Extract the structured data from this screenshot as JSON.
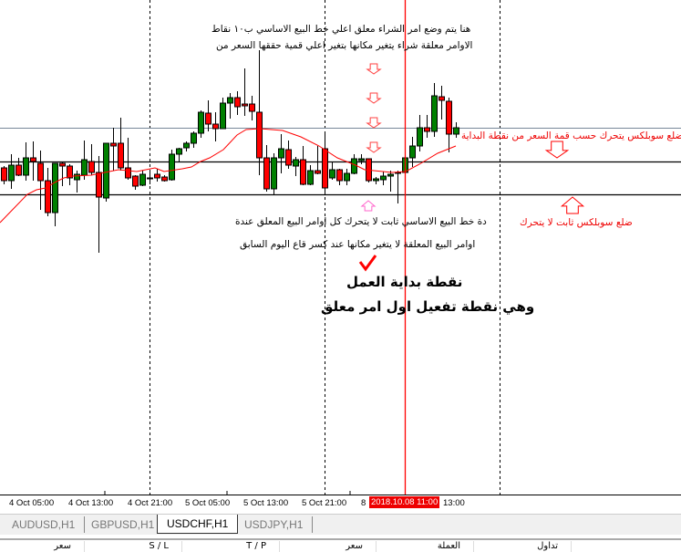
{
  "chart": {
    "symbol_tab_active": "USDCHF,H1",
    "colors": {
      "bull": "#008000",
      "bear": "#ff0000",
      "ma": "#ff0000",
      "start_line": "#ff0000",
      "resistance": "#778899",
      "levels": "#000000"
    },
    "annotations": {
      "top_line1": "هنا يتم وضع امر الشراء معلق اعلي خط البيع الاساسي ب١٠ نقاط",
      "top_line2": "الاوامر معلقة شراء يتغير مكانها بتغير اعلي قمية حققها السعر من",
      "bottom_line1": "دة خط البيع الاساسي ثابت لا يتحرك كل اوامر البيع المعلق عندة",
      "bottom_line2": "اوامر البيع المعلقة لا يتغير مكانها عند كسر قاع اليوم السابق",
      "start_title": "نقطة بداية العمل",
      "start_subtitle": "وهي نقطة تفعيل اول امر معلق",
      "upper_side": "ضلع سوبلكس يتحرك حسب قمة السعر من نقطة البداية",
      "lower_side": "ضلع سوبلكس ثابت لا يتحرك"
    },
    "icons": [
      "down-arrow-icon",
      "up-arrow-icon",
      "checkmark-icon"
    ]
  },
  "time_axis": {
    "ticks": [
      "4 Oct 05:00",
      "4 Oct 13:00",
      "4 Oct 21:00",
      "5 Oct 05:00",
      "5 Oct 13:00",
      "5 Oct 21:00",
      "8"
    ],
    "cursor_label": "2018.10.08 11:00",
    "after_cursor": "13:00"
  },
  "tabs": [
    {
      "label": "AUDUSD,H1",
      "active": false
    },
    {
      "label": "GBPUSD,H1",
      "active": false
    },
    {
      "label": "USDCHF,H1",
      "active": true
    },
    {
      "label": "USDJPY,H1",
      "active": false
    }
  ],
  "table_headers": [
    "سعر",
    "S / L",
    "T / P",
    "سعر",
    "العملة",
    "تداول"
  ]
}
